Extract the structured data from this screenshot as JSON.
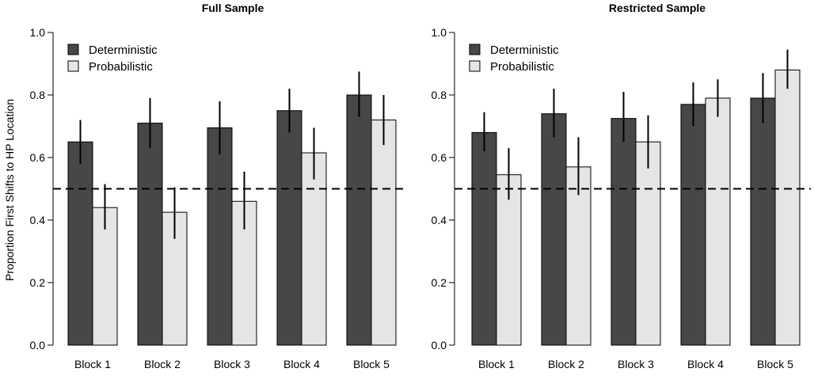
{
  "ylabel": "Proportion First Shifts to HP Location",
  "chart_data": [
    {
      "type": "bar",
      "title": "Full Sample",
      "ylabel": "Proportion First Shifts to HP Location",
      "xlabel": "",
      "categories": [
        "Block 1",
        "Block 2",
        "Block 3",
        "Block 4",
        "Block 5"
      ],
      "ylim": [
        0,
        1
      ],
      "yticks": [
        "0.0",
        "0.2",
        "0.4",
        "0.6",
        "0.8",
        "1.0"
      ],
      "reference_line": 0.5,
      "legend_position": "top-left",
      "series": [
        {
          "name": "Deterministic",
          "color": "#474747",
          "values": [
            0.65,
            0.71,
            0.695,
            0.75,
            0.8
          ],
          "err_low": [
            0.58,
            0.63,
            0.61,
            0.68,
            0.73
          ],
          "err_high": [
            0.72,
            0.79,
            0.78,
            0.82,
            0.875
          ]
        },
        {
          "name": "Probabilistic",
          "color": "#e5e5e5",
          "values": [
            0.44,
            0.425,
            0.46,
            0.615,
            0.72
          ],
          "err_low": [
            0.37,
            0.34,
            0.37,
            0.53,
            0.64
          ],
          "err_high": [
            0.515,
            0.505,
            0.555,
            0.695,
            0.8
          ]
        }
      ]
    },
    {
      "type": "bar",
      "title": "Restricted Sample",
      "ylabel": "",
      "xlabel": "",
      "categories": [
        "Block 1",
        "Block 2",
        "Block 3",
        "Block 4",
        "Block 5"
      ],
      "ylim": [
        0,
        1
      ],
      "yticks": [
        "0.0",
        "0.2",
        "0.4",
        "0.6",
        "0.8",
        "1.0"
      ],
      "reference_line": 0.5,
      "legend_position": "top-left",
      "series": [
        {
          "name": "Deterministic",
          "color": "#474747",
          "values": [
            0.68,
            0.74,
            0.725,
            0.77,
            0.79
          ],
          "err_low": [
            0.62,
            0.665,
            0.65,
            0.7,
            0.71
          ],
          "err_high": [
            0.745,
            0.82,
            0.81,
            0.84,
            0.87
          ]
        },
        {
          "name": "Probabilistic",
          "color": "#e5e5e5",
          "values": [
            0.545,
            0.57,
            0.65,
            0.79,
            0.88
          ],
          "err_low": [
            0.465,
            0.48,
            0.565,
            0.73,
            0.82
          ],
          "err_high": [
            0.63,
            0.665,
            0.735,
            0.85,
            0.945
          ]
        }
      ]
    }
  ]
}
